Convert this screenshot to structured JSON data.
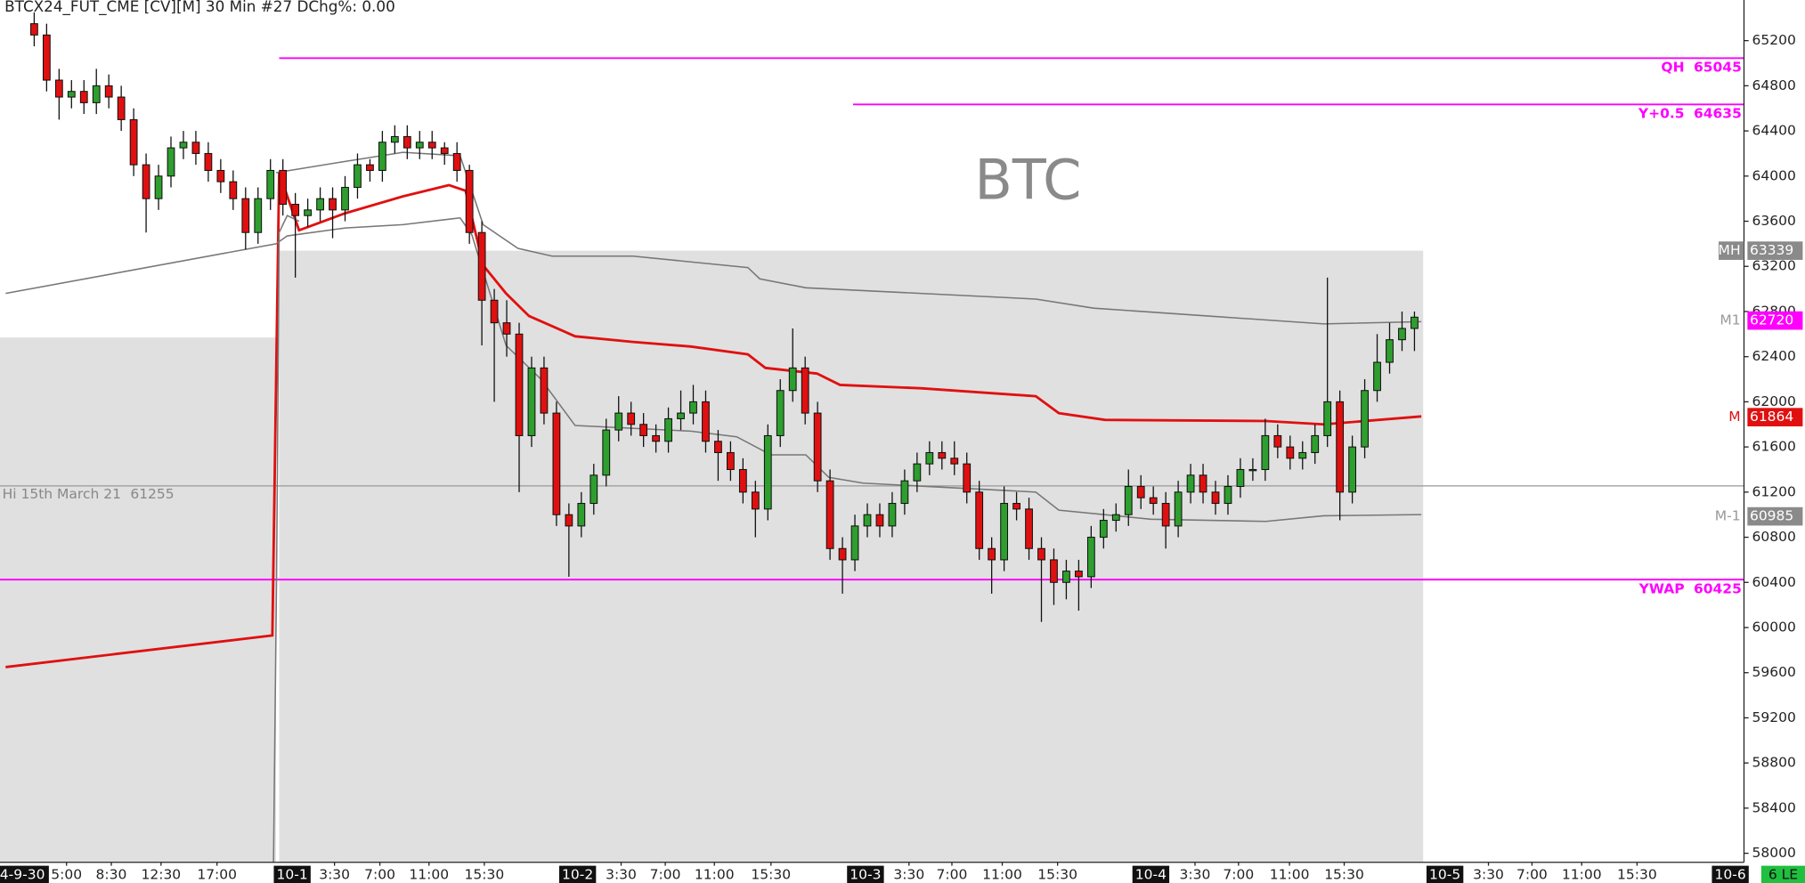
{
  "chart_data": {
    "type": "candlestick",
    "title": "BTCX24_FUT_CME [CV][M] 30 Min  #27 DChg%: 0.00",
    "watermark": "BTC",
    "corner_label": "6 LE",
    "xlim": [
      -5.5,
      275
    ],
    "ylim": [
      57920,
      65560
    ],
    "yticks": [
      58000,
      58400,
      58800,
      59200,
      59600,
      60000,
      60400,
      60800,
      61200,
      61600,
      62000,
      62400,
      62800,
      63200,
      63600,
      64000,
      64400,
      64800,
      65200
    ],
    "xticks": [
      {
        "value": 5.2,
        "label": "5:00"
      },
      {
        "value": 12.4,
        "label": "8:30"
      },
      {
        "value": 20.4,
        "label": "12:30"
      },
      {
        "value": 29.4,
        "label": "17:00"
      },
      {
        "value": 48.3,
        "label": "3:30"
      },
      {
        "value": 55.6,
        "label": "7:00"
      },
      {
        "value": 63.5,
        "label": "11:00"
      },
      {
        "value": 72.4,
        "label": "15:30"
      },
      {
        "value": 94.4,
        "label": "3:30"
      },
      {
        "value": 101.5,
        "label": "7:00"
      },
      {
        "value": 109.4,
        "label": "11:00"
      },
      {
        "value": 118.5,
        "label": "15:30"
      },
      {
        "value": 140.7,
        "label": "3:30"
      },
      {
        "value": 147.6,
        "label": "7:00"
      },
      {
        "value": 155.7,
        "label": "11:00"
      },
      {
        "value": 164.6,
        "label": "15:30"
      },
      {
        "value": 186.7,
        "label": "3:30"
      },
      {
        "value": 193.7,
        "label": "7:00"
      },
      {
        "value": 201.9,
        "label": "11:00"
      },
      {
        "value": 210.7,
        "label": "15:30"
      },
      {
        "value": 233.9,
        "label": "3:30"
      },
      {
        "value": 240.9,
        "label": "7:00"
      },
      {
        "value": 248.9,
        "label": "11:00"
      },
      {
        "value": 257.8,
        "label": "15:30"
      }
    ],
    "session_ticks": [
      {
        "value": -1.9,
        "label": "4-9-30"
      },
      {
        "value": 41.5,
        "label": "10-1"
      },
      {
        "value": 87.4,
        "label": "10-2"
      },
      {
        "value": 133.7,
        "label": "10-3"
      },
      {
        "value": 179.6,
        "label": "10-4"
      },
      {
        "value": 226.9,
        "label": "10-5"
      },
      {
        "value": 272.8,
        "label": "10-6"
      }
    ],
    "up_color": "#2e9e2e",
    "down_color": "#e01010",
    "candles": {
      "x": [
        0,
        2,
        4,
        6,
        8,
        10,
        12,
        14,
        16,
        18,
        20,
        22,
        24,
        26,
        28,
        30,
        32,
        34,
        36,
        38,
        40,
        42,
        44,
        46,
        48,
        50,
        52,
        54,
        56,
        58,
        60,
        62,
        64,
        66,
        68,
        70,
        72,
        74,
        76,
        78,
        80,
        82,
        84,
        86,
        88,
        90,
        92,
        94,
        96,
        98,
        100,
        102,
        104,
        106,
        108,
        110,
        112,
        114,
        116,
        118,
        120,
        122,
        124,
        126,
        128,
        130,
        132,
        134,
        136,
        138,
        140,
        142,
        144,
        146,
        148,
        150,
        152,
        154,
        156,
        158,
        160,
        162,
        164,
        166,
        168,
        170,
        172,
        174,
        176,
        178,
        180,
        182,
        184,
        186,
        188,
        190,
        192,
        194,
        196,
        198,
        200,
        202,
        204,
        206,
        208,
        210,
        212,
        214,
        216,
        218,
        220,
        222
      ],
      "open": [
        65350,
        65250,
        64850,
        64700,
        64750,
        64650,
        64800,
        64700,
        64500,
        64100,
        63800,
        64000,
        64250,
        64300,
        64200,
        64050,
        63950,
        63800,
        63500,
        63800,
        64050,
        63750,
        63650,
        63700,
        63800,
        63700,
        63900,
        64100,
        64050,
        64300,
        64350,
        64250,
        64300,
        64250,
        64200,
        64050,
        63500,
        62900,
        62700,
        62600,
        61700,
        62300,
        61900,
        61000,
        60900,
        61100,
        61350,
        61750,
        61900,
        61800,
        61700,
        61650,
        61850,
        61900,
        62000,
        61650,
        61550,
        61400,
        61200,
        61050,
        61700,
        62100,
        62300,
        61900,
        61300,
        60700,
        60600,
        60900,
        61000,
        60900,
        61100,
        61300,
        61450,
        61550,
        61500,
        61450,
        61200,
        60700,
        60600,
        61100,
        61050,
        60700,
        60600,
        60400,
        60500,
        60450,
        60800,
        60950,
        61000,
        61250,
        61150,
        61100,
        60900,
        61200,
        61350,
        61200,
        61100,
        61250,
        61400,
        61400,
        61700,
        61600,
        61500,
        61550,
        61700,
        62000,
        61200,
        61600,
        62100,
        62350,
        62550,
        62650
      ],
      "high": [
        65450,
        65350,
        64950,
        64850,
        64850,
        64950,
        64900,
        64800,
        64600,
        64200,
        64100,
        64350,
        64400,
        64400,
        64300,
        64150,
        64050,
        63900,
        63900,
        64150,
        64150,
        63850,
        63800,
        63900,
        63900,
        64000,
        64200,
        64150,
        64400,
        64450,
        64450,
        64400,
        64400,
        64300,
        64300,
        64100,
        63600,
        63000,
        62900,
        62700,
        62400,
        62400,
        62000,
        61100,
        61200,
        61450,
        61850,
        62050,
        62000,
        61900,
        61800,
        61950,
        62100,
        62150,
        62100,
        61750,
        61650,
        61500,
        61300,
        61800,
        62200,
        62650,
        62400,
        62000,
        61400,
        60800,
        61000,
        61100,
        61100,
        61200,
        61400,
        61550,
        61650,
        61650,
        61650,
        61550,
        61300,
        60800,
        61250,
        61200,
        61150,
        60800,
        60700,
        60600,
        60600,
        60900,
        61050,
        61100,
        61400,
        61350,
        61250,
        61200,
        61300,
        61450,
        61450,
        61300,
        61350,
        61500,
        61500,
        61850,
        61800,
        61700,
        61650,
        61800,
        63100,
        62100,
        61700,
        62200,
        62600,
        62700,
        62800,
        62800
      ],
      "low": [
        65150,
        64750,
        64500,
        64600,
        64550,
        64550,
        64600,
        64400,
        64000,
        63500,
        63700,
        63900,
        64150,
        64100,
        63950,
        63850,
        63700,
        63350,
        63400,
        63700,
        63650,
        63100,
        63550,
        63600,
        63450,
        63600,
        63800,
        63950,
        63950,
        64200,
        64150,
        64150,
        64150,
        64100,
        63950,
        63400,
        62500,
        62000,
        62400,
        61200,
        61600,
        61800,
        60900,
        60450,
        60800,
        61000,
        61250,
        61650,
        61700,
        61600,
        61550,
        61550,
        61750,
        61800,
        61550,
        61300,
        61300,
        61100,
        60800,
        60950,
        61600,
        62000,
        61800,
        61200,
        60600,
        60300,
        60500,
        60800,
        60800,
        60800,
        61000,
        61200,
        61350,
        61400,
        61350,
        61100,
        60600,
        60300,
        60500,
        60950,
        60600,
        60050,
        60200,
        60250,
        60150,
        60350,
        60700,
        60850,
        60900,
        61050,
        61000,
        60700,
        60800,
        61100,
        61100,
        61000,
        61000,
        61150,
        61300,
        61300,
        61500,
        61400,
        61400,
        61450,
        61600,
        60950,
        61100,
        61500,
        62000,
        62250,
        62450,
        62450
      ],
      "close": [
        65250,
        64850,
        64700,
        64750,
        64650,
        64800,
        64700,
        64500,
        64100,
        63800,
        64000,
        64250,
        64300,
        64200,
        64050,
        63950,
        63800,
        63500,
        63800,
        64050,
        63750,
        63650,
        63700,
        63800,
        63700,
        63900,
        64100,
        64050,
        64300,
        64350,
        64250,
        64300,
        64250,
        64200,
        64050,
        63500,
        62900,
        62700,
        62600,
        61700,
        62300,
        61900,
        61000,
        60900,
        61100,
        61350,
        61750,
        61900,
        61800,
        61700,
        61650,
        61850,
        61900,
        62000,
        61650,
        61550,
        61400,
        61200,
        61050,
        61700,
        62100,
        62300,
        61900,
        61300,
        60700,
        60600,
        60900,
        61000,
        60900,
        61100,
        61300,
        61450,
        61550,
        61500,
        61450,
        61200,
        60700,
        60600,
        61100,
        61050,
        60700,
        60600,
        60400,
        60500,
        60450,
        60800,
        60950,
        61000,
        61250,
        61150,
        61100,
        60900,
        61200,
        61350,
        61200,
        61100,
        61250,
        61400,
        61400,
        61700,
        61600,
        61500,
        61550,
        61700,
        62000,
        61200,
        61600,
        62100,
        62350,
        62550,
        62650,
        62750
      ]
    },
    "zones": [
      {
        "x": [
          -5.5,
          38.9
        ],
        "top": 62570
      },
      {
        "x": [
          39.4,
          223.4
        ],
        "top": 63339
      }
    ],
    "lines": [
      {
        "color": "#e01010",
        "width": 2.2,
        "x": [
          -4.6,
          38.3,
          39.4,
          42.6,
          50,
          59.3,
          66.7,
          69.4,
          72.2,
          75.9,
          79.6,
          87,
          96.3,
          105.6,
          114.8,
          117.6,
          125.9,
          129.6,
          142.6,
          161.1,
          164.8,
          172.2,
          198.1,
          207.4,
          223.1
        ],
        "values": [
          59650,
          59930,
          64030,
          63520,
          63670,
          63820,
          63920,
          63870,
          63210,
          62960,
          62760,
          62580,
          62530,
          62490,
          62420,
          62300,
          62250,
          62150,
          62120,
          62050,
          61900,
          61840,
          61830,
          61800,
          61870
        ]
      },
      {
        "color": "#777777",
        "width": 1.2,
        "x": [
          38.9,
          50,
          59.3,
          68.5,
          72.2,
          77.8,
          83.3,
          96.3,
          114.8,
          116.7,
          124.1,
          142.6,
          161.1,
          170.4,
          188.9,
          207.4,
          223.1
        ],
        "values": [
          64030,
          64130,
          64210,
          64180,
          63570,
          63360,
          63290,
          63290,
          63190,
          63090,
          63010,
          62960,
          62910,
          62830,
          62760,
          62690,
          62710
        ]
      },
      {
        "color": "#777777",
        "width": 1.2,
        "x": [
          -4.6,
          38.9,
          40.7,
          50,
          59.3,
          68.5,
          70.4,
          75.9,
          81.5,
          87,
          105.6,
          113,
          118.5,
          124.1,
          127.8,
          133.3,
          161.1,
          164.8,
          179.6,
          198.1,
          207.4,
          223.1
        ],
        "values": [
          62960,
          63400,
          63470,
          63540,
          63570,
          63630,
          63480,
          62500,
          62200,
          61790,
          61740,
          61690,
          61530,
          61530,
          61330,
          61280,
          61200,
          61040,
          60960,
          60940,
          60990,
          61000
        ]
      },
      {
        "color": "#777777",
        "width": 1.2,
        "x": [
          38.5,
          39,
          39.4,
          40.7,
          42.6
        ],
        "values": [
          57920,
          60500,
          63500,
          63650,
          63600
        ]
      }
    ],
    "levels": [
      {
        "label": "QH",
        "value": 65045,
        "x_start": 39.4,
        "color": "#ff00ff",
        "label_side": "right"
      },
      {
        "label": "Y+0.5",
        "value": 64635,
        "x_start": 131.7,
        "color": "#ff00ff",
        "label_side": "right"
      },
      {
        "label": "Hi 15th March 21",
        "value": 61255,
        "x_start": -5.5,
        "color": "#999999",
        "label_side": "left"
      },
      {
        "label": "YWAP",
        "value": 60425,
        "x_start": -5.5,
        "color": "#ff00ff",
        "label_side": "right"
      }
    ],
    "axis_markers": [
      {
        "label": "MH",
        "value": 63339,
        "box_color": "#8a8a8a",
        "label_color": "#ffffff",
        "label_box": true
      },
      {
        "label": "M1",
        "value": 62720,
        "box_color": "#ff00ff",
        "label_color": "#999999",
        "label_box": false
      },
      {
        "label": "M",
        "value": 61864,
        "box_color": "#e01010",
        "label_color": "#e01010",
        "label_box": false
      },
      {
        "label": "M-1",
        "value": 60985,
        "box_color": "#8a8a8a",
        "label_color": "#999999",
        "label_box": false
      }
    ]
  }
}
